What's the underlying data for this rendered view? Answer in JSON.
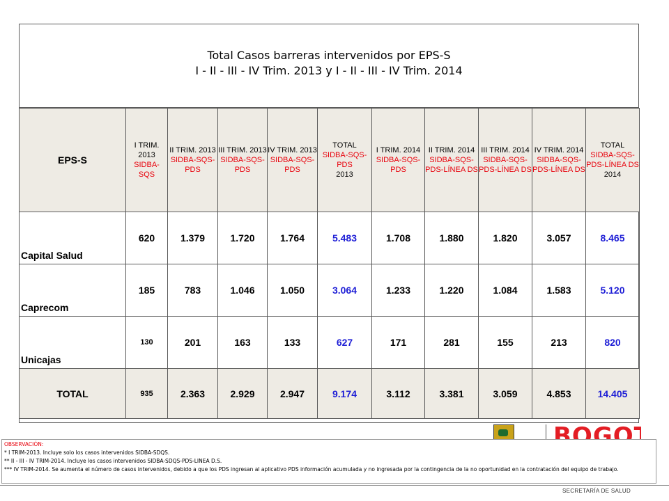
{
  "title": {
    "line1": "Total Casos barreras intervenidos por EPS-S",
    "line2": "I - II - III - IV Trim. 2013 y I - II - III - IV Trim. 2014"
  },
  "columns": [
    {
      "period": "EPS-S",
      "group": "",
      "extra": ""
    },
    {
      "period": "I TRIM. 2013",
      "group": "SIDBA-SQS",
      "extra": ""
    },
    {
      "period": "II TRIM. 2013",
      "group": "SIDBA-SQS-PDS",
      "extra": ""
    },
    {
      "period": "III TRIM. 2013",
      "group": "SIDBA-SQS-PDS",
      "extra": ""
    },
    {
      "period": "IV TRIM. 2013",
      "group": "SIDBA-SQS-PDS",
      "extra": ""
    },
    {
      "period": "TOTAL",
      "group": "SIDBA-SQS-PDS",
      "extra": "2013"
    },
    {
      "period": "I TRIM. 2014",
      "group": "SIDBA-SQS-PDS",
      "extra": ""
    },
    {
      "period": "II TRIM. 2014",
      "group": "SIDBA-SQS-PDS-LÍNEA DS",
      "extra": ""
    },
    {
      "period": "III TRIM. 2014",
      "group": "SIDBA-SQS-PDS-LÍNEA DS",
      "extra": ""
    },
    {
      "period": "IV TRIM. 2014",
      "group": "SIDBA-SQS-PDS-LÍNEA DS",
      "extra": ""
    },
    {
      "period": "TOTAL",
      "group": "SIDBA-SQS-PDS-LÍNEA DS",
      "extra": "2014"
    }
  ],
  "rows": [
    {
      "name": "Capital Salud",
      "values": [
        "620",
        "1.379",
        "1.720",
        "1.764",
        "5.483",
        "1.708",
        "1.880",
        "1.820",
        "3.057",
        "8.465"
      ]
    },
    {
      "name": "Caprecom",
      "values": [
        "185",
        "783",
        "1.046",
        "1.050",
        "3.064",
        "1.233",
        "1.220",
        "1.084",
        "1.583",
        "5.120"
      ]
    },
    {
      "name": "Unicajas",
      "values": [
        "130",
        "201",
        "163",
        "133",
        "627",
        "171",
        "281",
        "155",
        "213",
        "820"
      ]
    },
    {
      "name": "TOTAL",
      "values": [
        "935",
        "2.363",
        "2.929",
        "2.947",
        "9.174",
        "3.112",
        "3.381",
        "3.059",
        "4.853",
        "14.405"
      ]
    }
  ],
  "observations": {
    "title": "OBSERVACIÓN:",
    "lines": [
      "* I TRIM-2013. Incluye solo los casos intervenidos SIDBA-SDQS.",
      "** II - III - IV TRIM-2014. Incluye los casos intervenidos SIDBA-SDQS-PDS-LINEA D.S.",
      "*** IV TRIM-2014. Se aumenta el número de casos intervenidos, debido a que los PDS ingresan al aplicativo PDS información acumulada y no ingresada por la contingencia de la no oportunidad en la contratación del equipo de trabajo."
    ]
  },
  "logo": {
    "brand": "BOGOTÁ"
  },
  "footer": "SECRETARÍA DE SALUD",
  "colors": {
    "header_bg": "#eeebe4",
    "group_text": "#e8000b",
    "total_values": "#1e1ed6",
    "brand": "#e31d24"
  }
}
